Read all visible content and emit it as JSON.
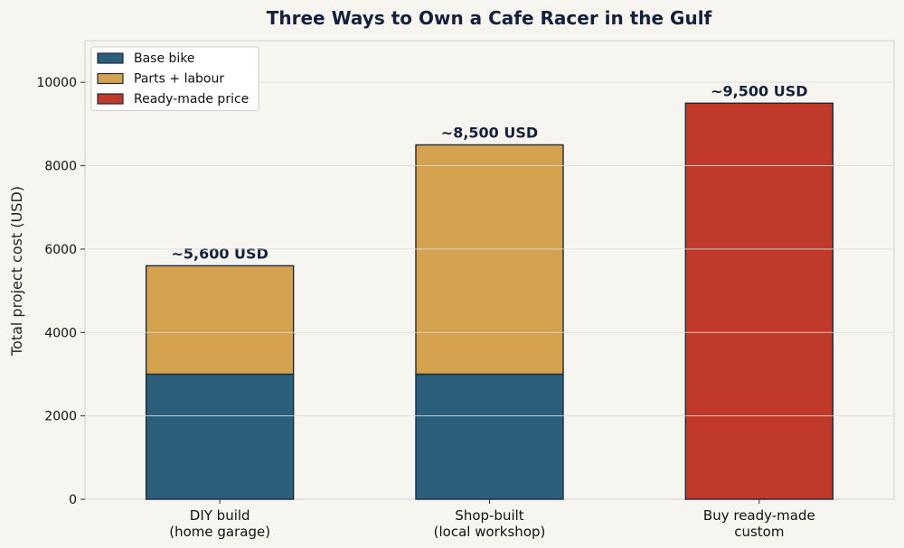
{
  "chart_data": {
    "type": "bar",
    "stacked": true,
    "title": "Three Ways to Own a Cafe Racer in the Gulf",
    "xlabel": "",
    "ylabel": "Total project cost (USD)",
    "ylim": [
      0,
      11000
    ],
    "yticks": [
      0,
      2000,
      4000,
      6000,
      8000,
      10000
    ],
    "grid": true,
    "legend_position": "top-left",
    "categories": [
      [
        "DIY build",
        "(home garage)"
      ],
      [
        "Shop-built",
        "(local workshop)"
      ],
      [
        "Buy ready-made",
        "custom"
      ]
    ],
    "series": [
      {
        "name": "Base bike",
        "color": "#2c5f7c",
        "values": [
          3000,
          3000,
          0
        ]
      },
      {
        "name": "Parts + labour",
        "color": "#d4a24f",
        "values": [
          2600,
          5500,
          0
        ]
      },
      {
        "name": "Ready-made price",
        "color": "#c0392b",
        "values": [
          0,
          0,
          9500
        ]
      }
    ],
    "total_labels": [
      "~5,600 USD",
      "~8,500 USD",
      "~9,500 USD"
    ]
  }
}
